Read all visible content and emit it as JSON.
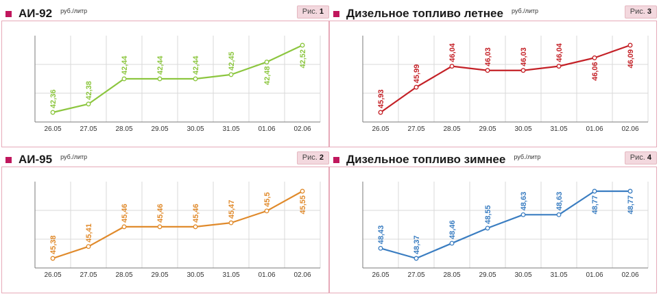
{
  "chart_data": [
    {
      "type": "line",
      "title": "АИ-92",
      "unit": "руб./литр",
      "fig_label": "Рис.",
      "fig_num": "1",
      "color": "#8cc63f",
      "categories": [
        "26.05",
        "27.05",
        "28.05",
        "29.05",
        "30.05",
        "31.05",
        "01.06",
        "02.06"
      ],
      "values": [
        42.36,
        42.38,
        42.44,
        42.44,
        42.44,
        42.45,
        42.48,
        42.52
      ],
      "labels": [
        "42,36",
        "42,38",
        "42,44",
        "42,44",
        "42,44",
        "42,45",
        "42,48",
        "42,52"
      ],
      "grid": true
    },
    {
      "type": "line",
      "title": "АИ-95",
      "unit": "руб./литр",
      "fig_label": "Рис.",
      "fig_num": "2",
      "color": "#e08a2b",
      "categories": [
        "26.05",
        "27.05",
        "28.05",
        "29.05",
        "30.05",
        "31.05",
        "01.06",
        "02.06"
      ],
      "values": [
        45.38,
        45.41,
        45.46,
        45.46,
        45.46,
        45.47,
        45.5,
        45.55
      ],
      "labels": [
        "45,38",
        "45,41",
        "45,46",
        "45,46",
        "45,46",
        "45,47",
        "45,5",
        "45,55"
      ],
      "grid": true
    },
    {
      "type": "line",
      "title": "Дизельное топливо летнее",
      "unit": "руб./литр",
      "fig_label": "Рис.",
      "fig_num": "3",
      "color": "#c42127",
      "categories": [
        "26.05",
        "27.05",
        "28.05",
        "29.05",
        "30.05",
        "31.05",
        "01.06",
        "02.06"
      ],
      "values": [
        45.93,
        45.99,
        46.04,
        46.03,
        46.03,
        46.04,
        46.06,
        46.09
      ],
      "labels": [
        "45,93",
        "45,99",
        "46,04",
        "46,03",
        "46,03",
        "46,04",
        "46,06",
        "46,09"
      ],
      "grid": true
    },
    {
      "type": "line",
      "title": "Дизельное топливо зимнее",
      "unit": "руб./литр",
      "fig_label": "Рис.",
      "fig_num": "4",
      "color": "#3a7dc1",
      "categories": [
        "26.05",
        "27.05",
        "28.05",
        "29.05",
        "30.05",
        "31.05",
        "01.06",
        "02.06"
      ],
      "values": [
        48.43,
        48.37,
        48.46,
        48.55,
        48.63,
        48.63,
        48.77,
        48.77
      ],
      "labels": [
        "48,43",
        "48,37",
        "48,46",
        "48,55",
        "48,63",
        "48,63",
        "48,77",
        "48,77"
      ],
      "grid": true
    }
  ]
}
